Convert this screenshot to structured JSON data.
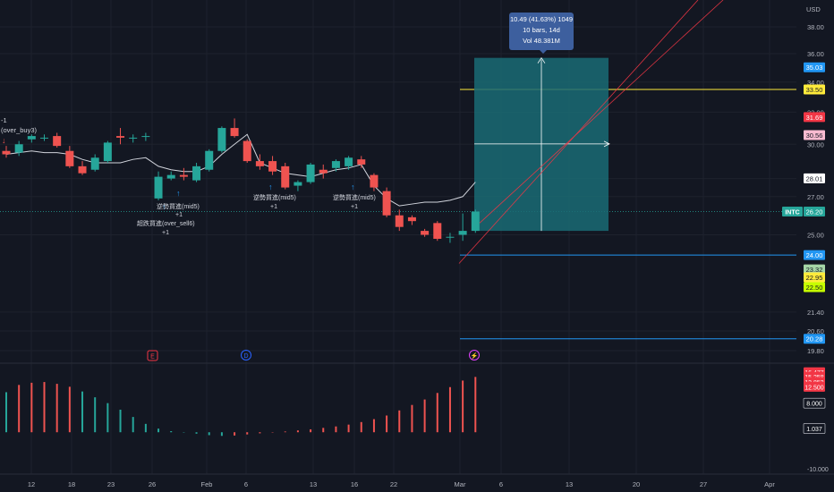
{
  "currency": "USD",
  "ticker": "INTC",
  "colors": {
    "up": "#26a69a",
    "down": "#ef5350",
    "bg": "#131722",
    "grid": "#1e222d",
    "text": "#b2b5be",
    "box": "#1a6b74",
    "ma": "#d1d4dc"
  },
  "tooltip": {
    "line1": "10.49 (41.63%) 1049",
    "line2": "10 bars, 14d",
    "line3": "Vol 48.381M"
  },
  "annotations": {
    "minus_one": "-1",
    "over_buy": "(over_buy3)",
    "trend_buy_a": "逆勢買進(mid5)",
    "trend_buy_b": "逆勢買進(mid5)",
    "trend_buy_c": "逆勢買進(mid5)",
    "oversold_buy": "超跌買進(over_sell6)",
    "plus_one": "+1"
  },
  "event_markers": {
    "earnings": "E",
    "dividend": "D",
    "split": "⚡"
  },
  "chart_data": [
    {
      "type": "candlestick",
      "title": "",
      "x_ticks": [
        "12",
        "18",
        "23",
        "26",
        "Feb",
        "6",
        "13",
        "16",
        "22",
        "Mar",
        "6",
        "13",
        "20",
        "27",
        "Apr"
      ],
      "y_ticks": [
        38.0,
        36.0,
        34.0,
        32.0,
        30.0,
        28.0,
        27.0,
        25.0,
        21.4,
        20.6,
        19.8
      ],
      "y_scale": "log",
      "y_range": [
        19.5,
        39.0
      ],
      "candles": [
        {
          "o": 29.6,
          "h": 29.9,
          "l": 29.2,
          "c": 29.4
        },
        {
          "o": 29.5,
          "h": 30.2,
          "l": 29.3,
          "c": 30.0
        },
        {
          "o": 30.3,
          "h": 30.6,
          "l": 30.1,
          "c": 30.5
        },
        {
          "o": 30.4,
          "h": 30.6,
          "l": 30.2,
          "c": 30.4
        },
        {
          "o": 30.5,
          "h": 30.7,
          "l": 29.8,
          "c": 29.9
        },
        {
          "o": 29.6,
          "h": 29.9,
          "l": 28.6,
          "c": 28.7
        },
        {
          "o": 28.7,
          "h": 29.0,
          "l": 28.2,
          "c": 28.3
        },
        {
          "o": 28.5,
          "h": 29.4,
          "l": 28.4,
          "c": 29.2
        },
        {
          "o": 29.0,
          "h": 30.2,
          "l": 28.9,
          "c": 30.1
        },
        {
          "o": 30.5,
          "h": 31.0,
          "l": 30.0,
          "c": 30.4
        },
        {
          "o": 30.4,
          "h": 30.6,
          "l": 30.1,
          "c": 30.4
        },
        {
          "o": 30.5,
          "h": 30.7,
          "l": 30.2,
          "c": 30.5
        },
        {
          "o": 26.9,
          "h": 28.4,
          "l": 26.8,
          "c": 28.1
        },
        {
          "o": 28.0,
          "h": 28.4,
          "l": 27.9,
          "c": 28.2
        },
        {
          "o": 28.2,
          "h": 28.6,
          "l": 27.9,
          "c": 28.1
        },
        {
          "o": 27.9,
          "h": 28.9,
          "l": 27.8,
          "c": 28.7
        },
        {
          "o": 28.5,
          "h": 29.7,
          "l": 28.4,
          "c": 29.6
        },
        {
          "o": 29.6,
          "h": 31.1,
          "l": 29.5,
          "c": 31.0
        },
        {
          "o": 31.0,
          "h": 31.6,
          "l": 30.4,
          "c": 30.5
        },
        {
          "o": 30.2,
          "h": 30.3,
          "l": 28.9,
          "c": 29.0
        },
        {
          "o": 29.0,
          "h": 29.4,
          "l": 28.5,
          "c": 28.7
        },
        {
          "o": 29.0,
          "h": 29.3,
          "l": 28.2,
          "c": 28.4
        },
        {
          "o": 28.7,
          "h": 28.9,
          "l": 27.4,
          "c": 27.5
        },
        {
          "o": 27.6,
          "h": 27.9,
          "l": 27.3,
          "c": 27.8
        },
        {
          "o": 27.8,
          "h": 28.9,
          "l": 27.7,
          "c": 28.8
        },
        {
          "o": 28.5,
          "h": 28.8,
          "l": 28.0,
          "c": 28.3
        },
        {
          "o": 28.6,
          "h": 29.1,
          "l": 28.4,
          "c": 29.0
        },
        {
          "o": 28.7,
          "h": 29.3,
          "l": 28.5,
          "c": 29.2
        },
        {
          "o": 29.1,
          "h": 29.3,
          "l": 28.6,
          "c": 28.8
        },
        {
          "o": 28.2,
          "h": 28.3,
          "l": 27.3,
          "c": 27.5
        },
        {
          "o": 27.3,
          "h": 27.5,
          "l": 25.9,
          "c": 26.0
        },
        {
          "o": 26.0,
          "h": 26.3,
          "l": 25.2,
          "c": 25.4
        },
        {
          "o": 25.9,
          "h": 26.0,
          "l": 25.5,
          "c": 25.7
        },
        {
          "o": 25.2,
          "h": 25.3,
          "l": 24.9,
          "c": 25.0
        },
        {
          "o": 25.6,
          "h": 25.7,
          "l": 24.7,
          "c": 24.8
        },
        {
          "o": 24.9,
          "h": 25.1,
          "l": 24.6,
          "c": 24.9
        },
        {
          "o": 25.0,
          "h": 26.1,
          "l": 24.7,
          "c": 25.2
        },
        {
          "o": 25.2,
          "h": 26.3,
          "l": 25.1,
          "c": 26.2
        }
      ],
      "moving_average": [
        29.4,
        29.5,
        29.6,
        29.5,
        29.5,
        29.4,
        29.1,
        28.9,
        28.9,
        28.9,
        29.1,
        29.2,
        28.7,
        28.5,
        28.4,
        28.4,
        28.7,
        29.4,
        30.0,
        30.6,
        28.9,
        28.6,
        28.3,
        28.2,
        28.1,
        28.3,
        28.5,
        28.6,
        28.8,
        27.6,
        26.9,
        26.5,
        26.6,
        26.7,
        26.7,
        26.8,
        27.0,
        27.8
      ],
      "price_labels": [
        {
          "label": "35.03",
          "value": 35.03,
          "color": "#2196f3"
        },
        {
          "label": "33.50",
          "value": 33.5,
          "color": "#ffeb3b"
        },
        {
          "label": "31.69",
          "value": 31.69,
          "color": "#f23645"
        },
        {
          "label": "30.56",
          "value": 30.56,
          "color": "#f8bbd0"
        },
        {
          "label": "28.01",
          "value": 28.01,
          "color": "#ffffff"
        },
        {
          "label": "26.20",
          "value": 26.2,
          "color": "#26a69a"
        },
        {
          "label": "24.00",
          "value": 24.0,
          "color": "#2196f3"
        },
        {
          "label": "23.32",
          "value": 23.32,
          "color": "#a5d6a7"
        },
        {
          "label": "22.95",
          "value": 22.95,
          "color": "#ffeb3b"
        },
        {
          "label": "22.50",
          "value": 22.5,
          "color": "#c6ff00"
        },
        {
          "label": "20.28",
          "value": 20.28,
          "color": "#2196f3"
        }
      ],
      "horizontal_lines": [
        {
          "value": 33.5,
          "color": "#ffeb3b"
        },
        {
          "value": 24.0,
          "color": "#2196f3"
        },
        {
          "value": 20.28,
          "color": "#2196f3"
        }
      ],
      "measure_box": {
        "from": 25.2,
        "to": 35.7,
        "change": 10.49,
        "pct": 41.63,
        "bars": 10
      }
    },
    {
      "type": "bar",
      "title": "",
      "y_ticks": [
        8.0,
        -10.0
      ],
      "y_tick_labels": [
        "8.000",
        "-10.000"
      ],
      "y_range": [
        -11.5,
        17.5
      ],
      "values": [
        11.0,
        13.0,
        13.6,
        13.8,
        13.3,
        12.5,
        11.2,
        9.6,
        8.0,
        6.2,
        4.2,
        2.3,
        1.0,
        0.3,
        -0.1,
        -0.4,
        -0.8,
        -1.0,
        -0.9,
        -0.6,
        -0.3,
        -0.1,
        0.2,
        0.5,
        0.8,
        1.2,
        1.6,
        2.1,
        2.8,
        3.6,
        4.6,
        6.0,
        7.5,
        9.0,
        10.8,
        12.4,
        14.2,
        15.2
      ],
      "colors": [
        "up",
        "down",
        "down",
        "down",
        "down",
        "down",
        "up",
        "up",
        "up",
        "up",
        "up",
        "up",
        "up",
        "up",
        "up",
        "up",
        "up",
        "up",
        "down",
        "down",
        "down",
        "down",
        "down",
        "down",
        "down",
        "down",
        "down",
        "down",
        "down",
        "down",
        "down",
        "down",
        "down",
        "down",
        "down",
        "down",
        "down",
        "down"
      ],
      "value_labels": [
        {
          "label": "16.477",
          "value": 16.477,
          "color": "#f23645"
        },
        {
          "label": "15.258",
          "value": 15.258,
          "color": "#f23645"
        },
        {
          "label": "13.853",
          "value": 13.853,
          "color": "#f23645"
        },
        {
          "label": "12.500",
          "value": 12.5,
          "color": "#f23645"
        },
        {
          "label": "8.000",
          "value": 8.0,
          "color": "#ffffff"
        },
        {
          "label": "1.037",
          "value": 1.037,
          "color": "#ffffff"
        }
      ]
    }
  ]
}
